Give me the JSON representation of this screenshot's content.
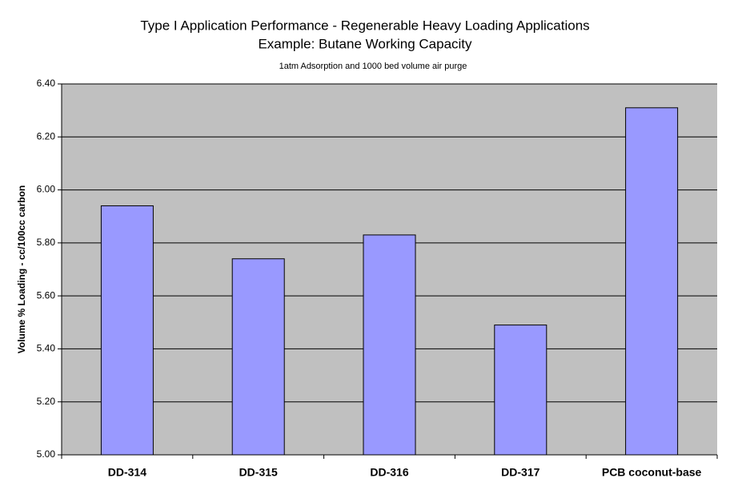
{
  "chart_data": {
    "type": "bar",
    "title": [
      "Type I Application Performance - Regenerable Heavy Loading Applications",
      "Example:  Butane Working Capacity"
    ],
    "subtitle": "1atm Adsorption and 1000 bed volume air purge",
    "y_label": "Volume % Loading - cc/100cc carbon",
    "categories": [
      "DD-314",
      "DD-315",
      "DD-316",
      "DD-317",
      "PCB coconut-base"
    ],
    "values": [
      5.94,
      5.74,
      5.83,
      5.49,
      6.31
    ],
    "color": "#9999ff",
    "ylim": [
      5.0,
      6.4
    ],
    "yticks": [
      {
        "value": 5.0,
        "label": "5.00"
      },
      {
        "value": 5.2,
        "label": "5.20"
      },
      {
        "value": 5.4,
        "label": "5.40"
      },
      {
        "value": 5.6,
        "label": "5.60"
      },
      {
        "value": 5.8,
        "label": "5.80"
      },
      {
        "value": 6.0,
        "label": "6.00"
      },
      {
        "value": 6.2,
        "label": "6.20"
      },
      {
        "value": 6.4,
        "label": "6.40"
      }
    ],
    "grid": true
  }
}
